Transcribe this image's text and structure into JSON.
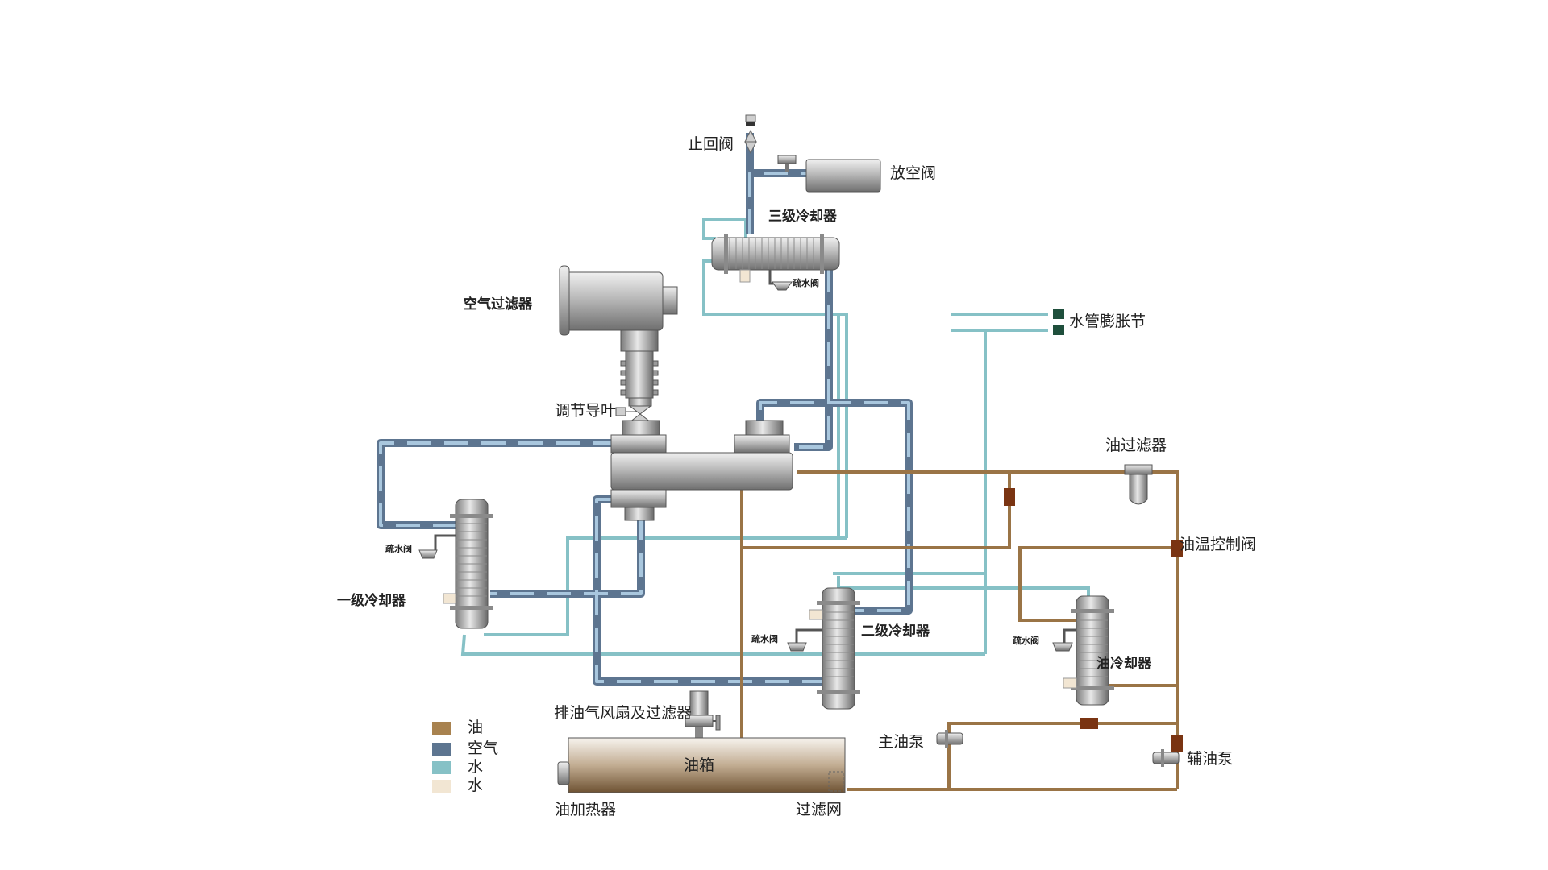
{
  "labels": {
    "check_valve": "止回阀",
    "vent_valve": "放空阀",
    "third_cooler": "三级冷却器",
    "drain_valve": "疏水阀",
    "air_filter": "空气过滤器",
    "water_expansion": "水管膨胀节",
    "guide_vane": "调节导叶",
    "oil_filter": "油过滤器",
    "oil_temp_valve": "油温控制阀",
    "first_cooler": "一级冷却器",
    "second_cooler": "二级冷却器",
    "oil_cooler": "油冷却器",
    "exhaust_fan": "排油气风扇及过滤器",
    "main_pump": "主油泵",
    "aux_pump": "辅油泵",
    "oil_tank": "油箱",
    "oil_heater": "油加热器",
    "filter_screen": "过滤网"
  },
  "legend": [
    {
      "label": "油",
      "color": "#a8824f"
    },
    {
      "label": "空气",
      "color": "#5d7590"
    },
    {
      "label": "水",
      "color": "#86c1c6"
    },
    {
      "label": "水",
      "color": "#f2e6d3"
    }
  ],
  "colors": {
    "oil": "#9a7446",
    "air": "#5d7590",
    "air_light": "#a9c7de",
    "water": "#86c1c6",
    "valve": "#7a3412",
    "expansion": "#1f4f3c"
  }
}
